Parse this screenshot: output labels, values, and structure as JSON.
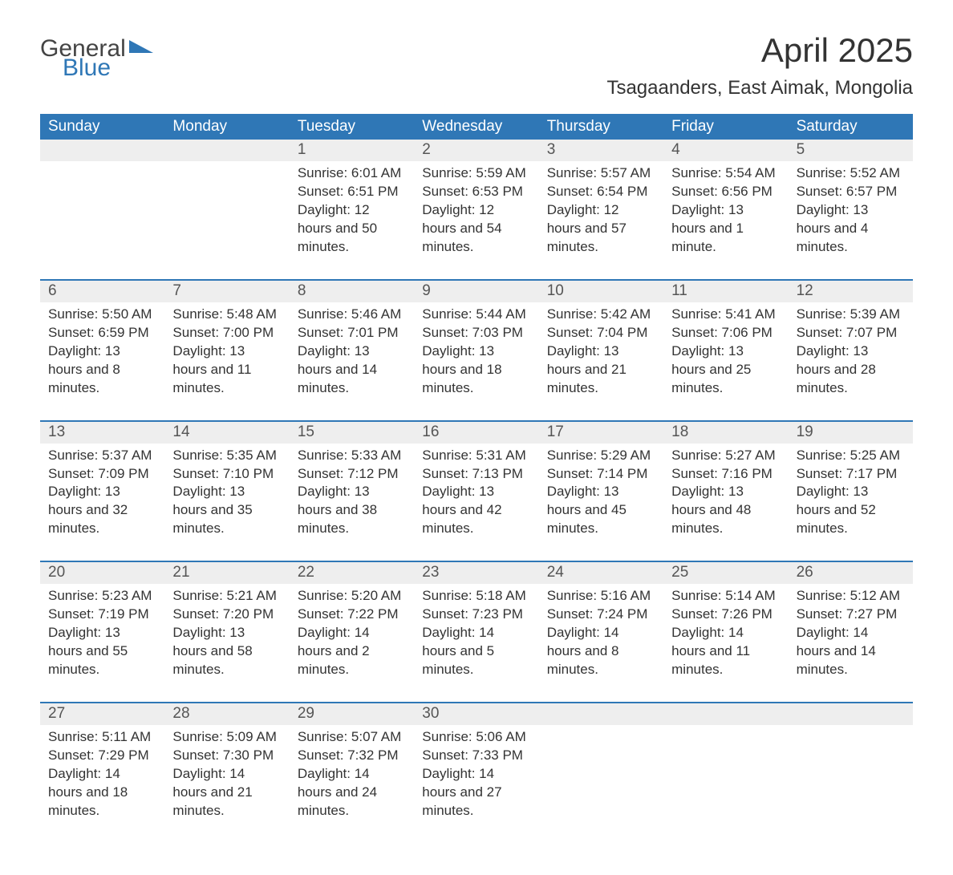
{
  "logo": {
    "word1": "General",
    "word2": "Blue"
  },
  "title": "April 2025",
  "subtitle": "Tsagaanders, East Aimak, Mongolia",
  "colors": {
    "accent": "#2f77b6",
    "header_text": "#ffffff",
    "date_row_bg": "#eeeeee",
    "body_text": "#333333",
    "muted_text": "#555555",
    "background": "#ffffff"
  },
  "day_names": [
    "Sunday",
    "Monday",
    "Tuesday",
    "Wednesday",
    "Thursday",
    "Friday",
    "Saturday"
  ],
  "weeks": [
    [
      {
        "date": "",
        "sunrise": "",
        "sunset": "",
        "daylight": ""
      },
      {
        "date": "",
        "sunrise": "",
        "sunset": "",
        "daylight": ""
      },
      {
        "date": "1",
        "sunrise": "Sunrise: 6:01 AM",
        "sunset": "Sunset: 6:51 PM",
        "daylight": "Daylight: 12 hours and 50 minutes."
      },
      {
        "date": "2",
        "sunrise": "Sunrise: 5:59 AM",
        "sunset": "Sunset: 6:53 PM",
        "daylight": "Daylight: 12 hours and 54 minutes."
      },
      {
        "date": "3",
        "sunrise": "Sunrise: 5:57 AM",
        "sunset": "Sunset: 6:54 PM",
        "daylight": "Daylight: 12 hours and 57 minutes."
      },
      {
        "date": "4",
        "sunrise": "Sunrise: 5:54 AM",
        "sunset": "Sunset: 6:56 PM",
        "daylight": "Daylight: 13 hours and 1 minute."
      },
      {
        "date": "5",
        "sunrise": "Sunrise: 5:52 AM",
        "sunset": "Sunset: 6:57 PM",
        "daylight": "Daylight: 13 hours and 4 minutes."
      }
    ],
    [
      {
        "date": "6",
        "sunrise": "Sunrise: 5:50 AM",
        "sunset": "Sunset: 6:59 PM",
        "daylight": "Daylight: 13 hours and 8 minutes."
      },
      {
        "date": "7",
        "sunrise": "Sunrise: 5:48 AM",
        "sunset": "Sunset: 7:00 PM",
        "daylight": "Daylight: 13 hours and 11 minutes."
      },
      {
        "date": "8",
        "sunrise": "Sunrise: 5:46 AM",
        "sunset": "Sunset: 7:01 PM",
        "daylight": "Daylight: 13 hours and 14 minutes."
      },
      {
        "date": "9",
        "sunrise": "Sunrise: 5:44 AM",
        "sunset": "Sunset: 7:03 PM",
        "daylight": "Daylight: 13 hours and 18 minutes."
      },
      {
        "date": "10",
        "sunrise": "Sunrise: 5:42 AM",
        "sunset": "Sunset: 7:04 PM",
        "daylight": "Daylight: 13 hours and 21 minutes."
      },
      {
        "date": "11",
        "sunrise": "Sunrise: 5:41 AM",
        "sunset": "Sunset: 7:06 PM",
        "daylight": "Daylight: 13 hours and 25 minutes."
      },
      {
        "date": "12",
        "sunrise": "Sunrise: 5:39 AM",
        "sunset": "Sunset: 7:07 PM",
        "daylight": "Daylight: 13 hours and 28 minutes."
      }
    ],
    [
      {
        "date": "13",
        "sunrise": "Sunrise: 5:37 AM",
        "sunset": "Sunset: 7:09 PM",
        "daylight": "Daylight: 13 hours and 32 minutes."
      },
      {
        "date": "14",
        "sunrise": "Sunrise: 5:35 AM",
        "sunset": "Sunset: 7:10 PM",
        "daylight": "Daylight: 13 hours and 35 minutes."
      },
      {
        "date": "15",
        "sunrise": "Sunrise: 5:33 AM",
        "sunset": "Sunset: 7:12 PM",
        "daylight": "Daylight: 13 hours and 38 minutes."
      },
      {
        "date": "16",
        "sunrise": "Sunrise: 5:31 AM",
        "sunset": "Sunset: 7:13 PM",
        "daylight": "Daylight: 13 hours and 42 minutes."
      },
      {
        "date": "17",
        "sunrise": "Sunrise: 5:29 AM",
        "sunset": "Sunset: 7:14 PM",
        "daylight": "Daylight: 13 hours and 45 minutes."
      },
      {
        "date": "18",
        "sunrise": "Sunrise: 5:27 AM",
        "sunset": "Sunset: 7:16 PM",
        "daylight": "Daylight: 13 hours and 48 minutes."
      },
      {
        "date": "19",
        "sunrise": "Sunrise: 5:25 AM",
        "sunset": "Sunset: 7:17 PM",
        "daylight": "Daylight: 13 hours and 52 minutes."
      }
    ],
    [
      {
        "date": "20",
        "sunrise": "Sunrise: 5:23 AM",
        "sunset": "Sunset: 7:19 PM",
        "daylight": "Daylight: 13 hours and 55 minutes."
      },
      {
        "date": "21",
        "sunrise": "Sunrise: 5:21 AM",
        "sunset": "Sunset: 7:20 PM",
        "daylight": "Daylight: 13 hours and 58 minutes."
      },
      {
        "date": "22",
        "sunrise": "Sunrise: 5:20 AM",
        "sunset": "Sunset: 7:22 PM",
        "daylight": "Daylight: 14 hours and 2 minutes."
      },
      {
        "date": "23",
        "sunrise": "Sunrise: 5:18 AM",
        "sunset": "Sunset: 7:23 PM",
        "daylight": "Daylight: 14 hours and 5 minutes."
      },
      {
        "date": "24",
        "sunrise": "Sunrise: 5:16 AM",
        "sunset": "Sunset: 7:24 PM",
        "daylight": "Daylight: 14 hours and 8 minutes."
      },
      {
        "date": "25",
        "sunrise": "Sunrise: 5:14 AM",
        "sunset": "Sunset: 7:26 PM",
        "daylight": "Daylight: 14 hours and 11 minutes."
      },
      {
        "date": "26",
        "sunrise": "Sunrise: 5:12 AM",
        "sunset": "Sunset: 7:27 PM",
        "daylight": "Daylight: 14 hours and 14 minutes."
      }
    ],
    [
      {
        "date": "27",
        "sunrise": "Sunrise: 5:11 AM",
        "sunset": "Sunset: 7:29 PM",
        "daylight": "Daylight: 14 hours and 18 minutes."
      },
      {
        "date": "28",
        "sunrise": "Sunrise: 5:09 AM",
        "sunset": "Sunset: 7:30 PM",
        "daylight": "Daylight: 14 hours and 21 minutes."
      },
      {
        "date": "29",
        "sunrise": "Sunrise: 5:07 AM",
        "sunset": "Sunset: 7:32 PM",
        "daylight": "Daylight: 14 hours and 24 minutes."
      },
      {
        "date": "30",
        "sunrise": "Sunrise: 5:06 AM",
        "sunset": "Sunset: 7:33 PM",
        "daylight": "Daylight: 14 hours and 27 minutes."
      },
      {
        "date": "",
        "sunrise": "",
        "sunset": "",
        "daylight": ""
      },
      {
        "date": "",
        "sunrise": "",
        "sunset": "",
        "daylight": ""
      },
      {
        "date": "",
        "sunrise": "",
        "sunset": "",
        "daylight": ""
      }
    ]
  ]
}
